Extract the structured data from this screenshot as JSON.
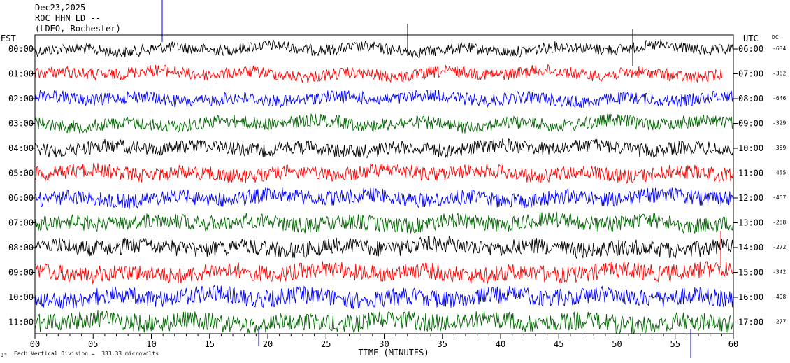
{
  "header": {
    "date": "Dec23,2025",
    "station": "ROC HHN LD --",
    "network": "(LDEO, Rochester)"
  },
  "left_timezone": "EST",
  "right_timezone": "UTC",
  "dc_label": "DC",
  "footer": {
    "scale": "Each Vertical Division =  333.33 microvolts",
    "xlabel": "TIME (MINUTES)"
  },
  "chart_data": {
    "type": "line",
    "xlabel": "TIME (MINUTES)",
    "xlim": [
      0,
      60
    ],
    "x_ticks": [
      "00",
      "05",
      "10",
      "15",
      "20",
      "25",
      "30",
      "35",
      "40",
      "45",
      "50",
      "55",
      "60"
    ],
    "colors": [
      "#000000",
      "#ff0000",
      "#0000ff",
      "#006400"
    ],
    "rows": [
      {
        "est": "00:00",
        "utc": "06:00",
        "dc": "-634"
      },
      {
        "est": "01:00",
        "utc": "07:00",
        "dc": "-382"
      },
      {
        "est": "02:00",
        "utc": "08:00",
        "dc": "-646"
      },
      {
        "est": "03:00",
        "utc": "09:00",
        "dc": "-329"
      },
      {
        "est": "04:00",
        "utc": "10:00",
        "dc": "-359"
      },
      {
        "est": "05:00",
        "utc": "11:00",
        "dc": "-455"
      },
      {
        "est": "06:00",
        "utc": "12:00",
        "dc": "-457"
      },
      {
        "est": "07:00",
        "utc": "13:00",
        "dc": "-288"
      },
      {
        "est": "08:00",
        "utc": "14:00",
        "dc": "-272"
      },
      {
        "est": "09:00",
        "utc": "15:00",
        "dc": "-342"
      },
      {
        "est": "10:00",
        "utc": "16:00",
        "dc": "-498"
      },
      {
        "est": "11:00",
        "utc": "17:00",
        "dc": "-277"
      }
    ]
  }
}
